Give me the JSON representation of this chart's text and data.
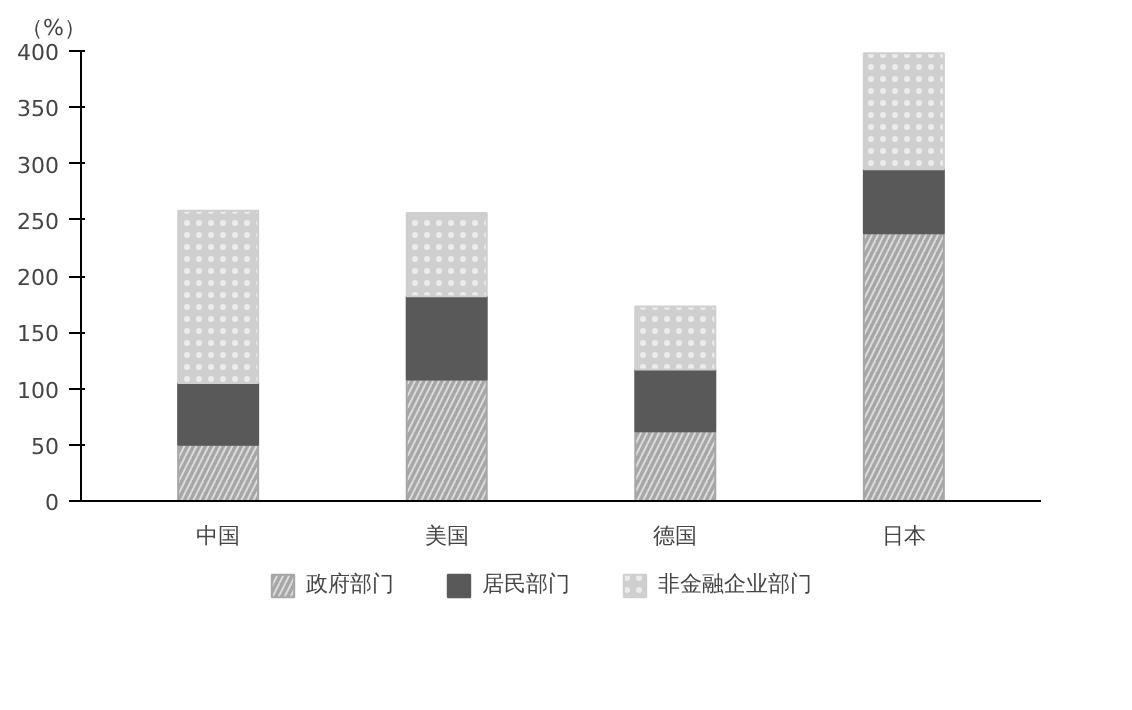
{
  "chart_data": {
    "type": "bar",
    "stacked": true,
    "ylabel": "（%）",
    "categories": [
      "中国",
      "美国",
      "德国",
      "日本"
    ],
    "series": [
      {
        "name": "政府部门",
        "color": "#a6a6a6",
        "values": [
          50,
          108,
          62,
          238
        ]
      },
      {
        "name": "居民部门",
        "color": "#595959",
        "values": [
          55,
          74,
          55,
          57
        ]
      },
      {
        "name": "非金融企业部门",
        "color": "#cfcfcf",
        "values": [
          153,
          74,
          56,
          103
        ]
      }
    ],
    "ylim": [
      0,
      400
    ],
    "yticks": [
      0,
      50,
      100,
      150,
      200,
      250,
      300,
      350,
      400
    ],
    "grid": false,
    "legend": "bottom"
  }
}
